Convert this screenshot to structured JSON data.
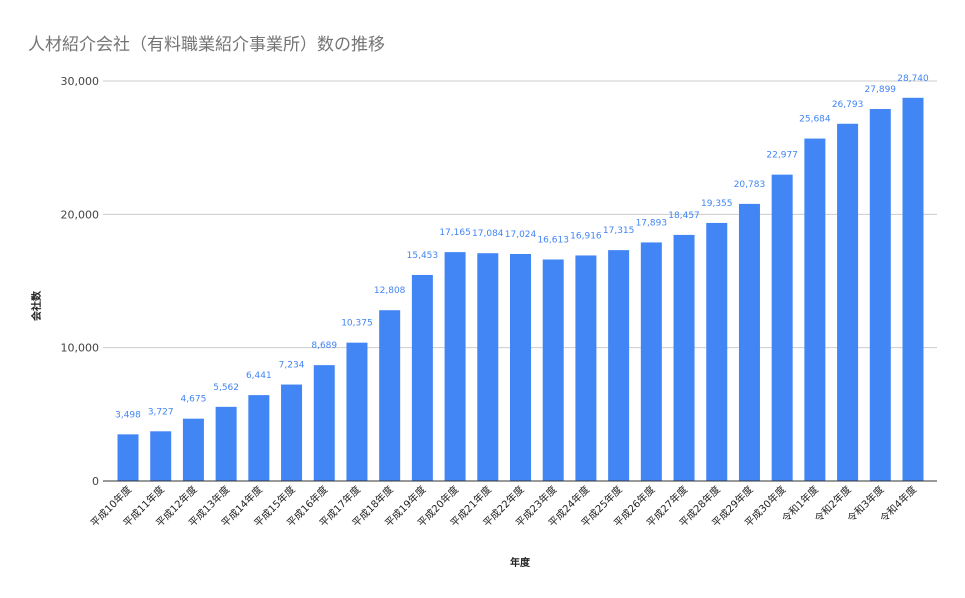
{
  "chart_data": {
    "type": "bar",
    "title": "人材紹介会社（有料職業紹介事業所）数の推移",
    "xlabel": "年度",
    "ylabel": "会社数",
    "ylim": [
      0,
      30000
    ],
    "yticks": [
      "0",
      "10,000",
      "20,000",
      "30,000"
    ],
    "grid": true,
    "legend": "none",
    "bar_color": "#4285f4",
    "categories": [
      "平成10年度",
      "平成11年度",
      "平成12年度",
      "平成13年度",
      "平成14年度",
      "平成15年度",
      "平成16年度",
      "平成17年度",
      "平成18年度",
      "平成19年度",
      "平成20年度",
      "平成21年度",
      "平成22年度",
      "平成23年度",
      "平成24年度",
      "平成25年度",
      "平成26年度",
      "平成27年度",
      "平成28年度",
      "平成29年度",
      "平成30年度",
      "令和1年度",
      "令和2年度",
      "令和3年度",
      "令和4年度"
    ],
    "values": [
      3498,
      3727,
      4675,
      5562,
      6441,
      7234,
      8689,
      10375,
      12808,
      15453,
      17165,
      17084,
      17024,
      16613,
      16916,
      17315,
      17893,
      18457,
      19355,
      20783,
      22977,
      25684,
      26793,
      27899,
      28740
    ],
    "data_labels": [
      "3,498",
      "3,727",
      "4,675",
      "5,562",
      "6,441",
      "7,234",
      "8,689",
      "10,375",
      "12,808",
      "15,453",
      "17,165",
      "17,084",
      "17,024",
      "16,613",
      "16,916",
      "17,315",
      "17,893",
      "18,457",
      "19,355",
      "20,783",
      "22,977",
      "25,684",
      "26,793",
      "27,899",
      "28,740"
    ]
  }
}
